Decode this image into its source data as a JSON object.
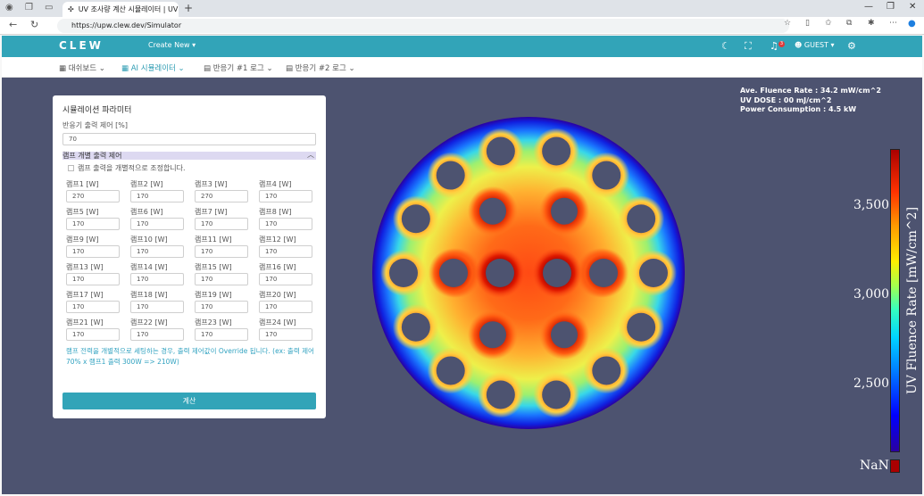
{
  "browser": {
    "tab_title": "UV 조사량 계산 시뮬레이터 | UV",
    "url": "https://upw.clew.dev/Simulator"
  },
  "header": {
    "logo": "CLEW",
    "create_new": "Create New ▾",
    "notification_count": "3",
    "user": "GUEST ▾",
    "accent": "#32a4b8"
  },
  "subnav": {
    "items": [
      "대쉬보드",
      "AI 시뮬레이터",
      "반응기 #1 로그",
      "반응기 #2 로그"
    ]
  },
  "panel": {
    "title": "시뮬레이션 파라미터",
    "output_label": "반응기 출력 제어 [%]",
    "output_value": "70",
    "section": "램프 개별 출력 제어",
    "checkbox_label": "램프 출력을 개별적으로 조정합니다.",
    "lamps": [
      {
        "label": "램프1 [W]",
        "value": "270"
      },
      {
        "label": "램프2 [W]",
        "value": "170"
      },
      {
        "label": "램프3 [W]",
        "value": "270"
      },
      {
        "label": "램프4 [W]",
        "value": "170"
      },
      {
        "label": "램프5 [W]",
        "value": "170"
      },
      {
        "label": "램프6 [W]",
        "value": "170"
      },
      {
        "label": "램프7 [W]",
        "value": "170"
      },
      {
        "label": "램프8 [W]",
        "value": "170"
      },
      {
        "label": "램프9 [W]",
        "value": "170"
      },
      {
        "label": "램프10 [W]",
        "value": "170"
      },
      {
        "label": "램프11 [W]",
        "value": "170"
      },
      {
        "label": "램프12 [W]",
        "value": "170"
      },
      {
        "label": "램프13 [W]",
        "value": "170"
      },
      {
        "label": "램프14 [W]",
        "value": "170"
      },
      {
        "label": "램프15 [W]",
        "value": "170"
      },
      {
        "label": "램프16 [W]",
        "value": "170"
      },
      {
        "label": "램프17 [W]",
        "value": "170"
      },
      {
        "label": "램프18 [W]",
        "value": "170"
      },
      {
        "label": "램프19 [W]",
        "value": "170"
      },
      {
        "label": "램프20 [W]",
        "value": "170"
      },
      {
        "label": "램프21 [W]",
        "value": "170"
      },
      {
        "label": "램프22 [W]",
        "value": "170"
      },
      {
        "label": "램프23 [W]",
        "value": "170"
      },
      {
        "label": "램프24 [W]",
        "value": "170"
      }
    ],
    "note": "램프 전력을 개별적으로 세팅하는 경우, 출력 제어값이 Override 됩니다. (ex: 출력 제어 70% x 램프1 출력 300W => 210W)",
    "calc_button": "계산"
  },
  "stats": {
    "fluence": "Ave. Fluence Rate : 34.2 mW/cm^2",
    "dose": "UV DOSE : 00 mJ/cm^2",
    "power": "Power Consumption : 4.5 kW"
  },
  "colorbar": {
    "title": "UV Fluence Rate [mW/cm^2]",
    "ticks": [
      "3,500",
      "3,000",
      "2,500"
    ],
    "nan_label": "NaN"
  }
}
